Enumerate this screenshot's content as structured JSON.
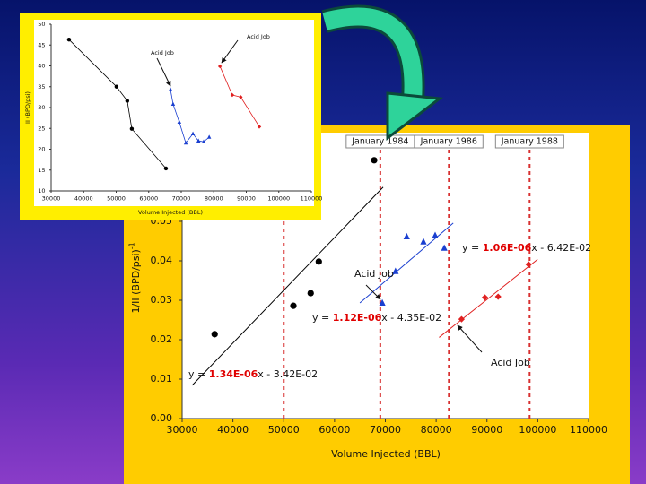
{
  "chart_data": [
    {
      "type": "scatter",
      "xlabel": "Volume Injected (BBL)",
      "ylabel": "1/II (BPD/psi)",
      "ylabel_sup": "-1",
      "xlim": [
        30000,
        110000
      ],
      "xticks": [
        30000,
        40000,
        50000,
        60000,
        70000,
        80000,
        90000,
        100000,
        110000
      ],
      "ylim": [
        0,
        0.07
      ],
      "yticks": [
        {
          "value": 0,
          "label": "0.00"
        },
        0.01,
        0.02,
        0.03,
        0.04,
        0.05
      ],
      "series": [
        {
          "color": "#000000",
          "marker": "circle",
          "trendline": true,
          "x": [
            36400,
            51900,
            55300,
            56900,
            67800
          ],
          "values": [
            0.0214,
            0.0286,
            0.0318,
            0.0398,
            0.0655
          ]
        },
        {
          "color": "#1a3fd0",
          "marker": "triangle",
          "trendline": true,
          "x": [
            69400,
            72000,
            74200,
            77500,
            79800,
            81600
          ],
          "values": [
            0.0293,
            0.0373,
            0.0461,
            0.0448,
            0.0464,
            0.0432
          ]
        },
        {
          "color": "#e02020",
          "marker": "diamond",
          "trendline": true,
          "x": [
            85000,
            89600,
            92200,
            98200
          ],
          "values": [
            0.0252,
            0.0307,
            0.0309,
            0.0391
          ]
        }
      ],
      "vline_color": "#d83030",
      "vlines": [
        {
          "x": 50000
        },
        {
          "x": 69000,
          "label": "January 1984"
        },
        {
          "x": 82500,
          "label": "January 1986"
        },
        {
          "x": 98400,
          "label": "January 1988"
        }
      ],
      "highlight_color": "#e00000",
      "equations": [
        {
          "prefix": "y = ",
          "slope": "1.34E-06",
          "rest": "x - 3.42E-02"
        },
        {
          "prefix": "y = ",
          "slope": "1.12E-06",
          "rest": "x - 4.35E-02"
        },
        {
          "prefix": "y = ",
          "slope": "1.06E-06",
          "rest": "x - 6.42E-02"
        }
      ],
      "annotations": [
        "Acid Job",
        "Acid Job"
      ]
    },
    {
      "type": "line",
      "xlabel": "Volume Injected (BBL)",
      "ylabel": "II (BPD/psi)",
      "xlim": [
        30000,
        110000
      ],
      "xticks": [
        30000,
        40000,
        50000,
        60000,
        70000,
        80000,
        90000,
        100000,
        110000
      ],
      "ylim": [
        10,
        50
      ],
      "yticks": [
        10,
        15,
        20,
        25,
        30,
        35,
        40,
        45,
        50
      ],
      "series": [
        {
          "color": "#000000",
          "marker": "circle",
          "x": [
            35500,
            50100,
            53400,
            54800,
            65300
          ],
          "values": [
            46.3,
            35,
            31.6,
            24.9,
            15.4
          ]
        },
        {
          "color": "#1a3fd0",
          "marker": "triangle",
          "x": [
            66700,
            67500,
            69400,
            71400,
            73600,
            75300,
            76900,
            78600
          ],
          "values": [
            34.3,
            30.8,
            26.5,
            21.5,
            23.7,
            22,
            21.8,
            22.9
          ]
        },
        {
          "color": "#e02020",
          "marker": "diamond",
          "x": [
            81900,
            85700,
            88300,
            94000
          ],
          "values": [
            39.9,
            33,
            32.5,
            25.4
          ]
        }
      ],
      "annotations": [
        "Acid Job",
        "Acid Job"
      ]
    }
  ]
}
